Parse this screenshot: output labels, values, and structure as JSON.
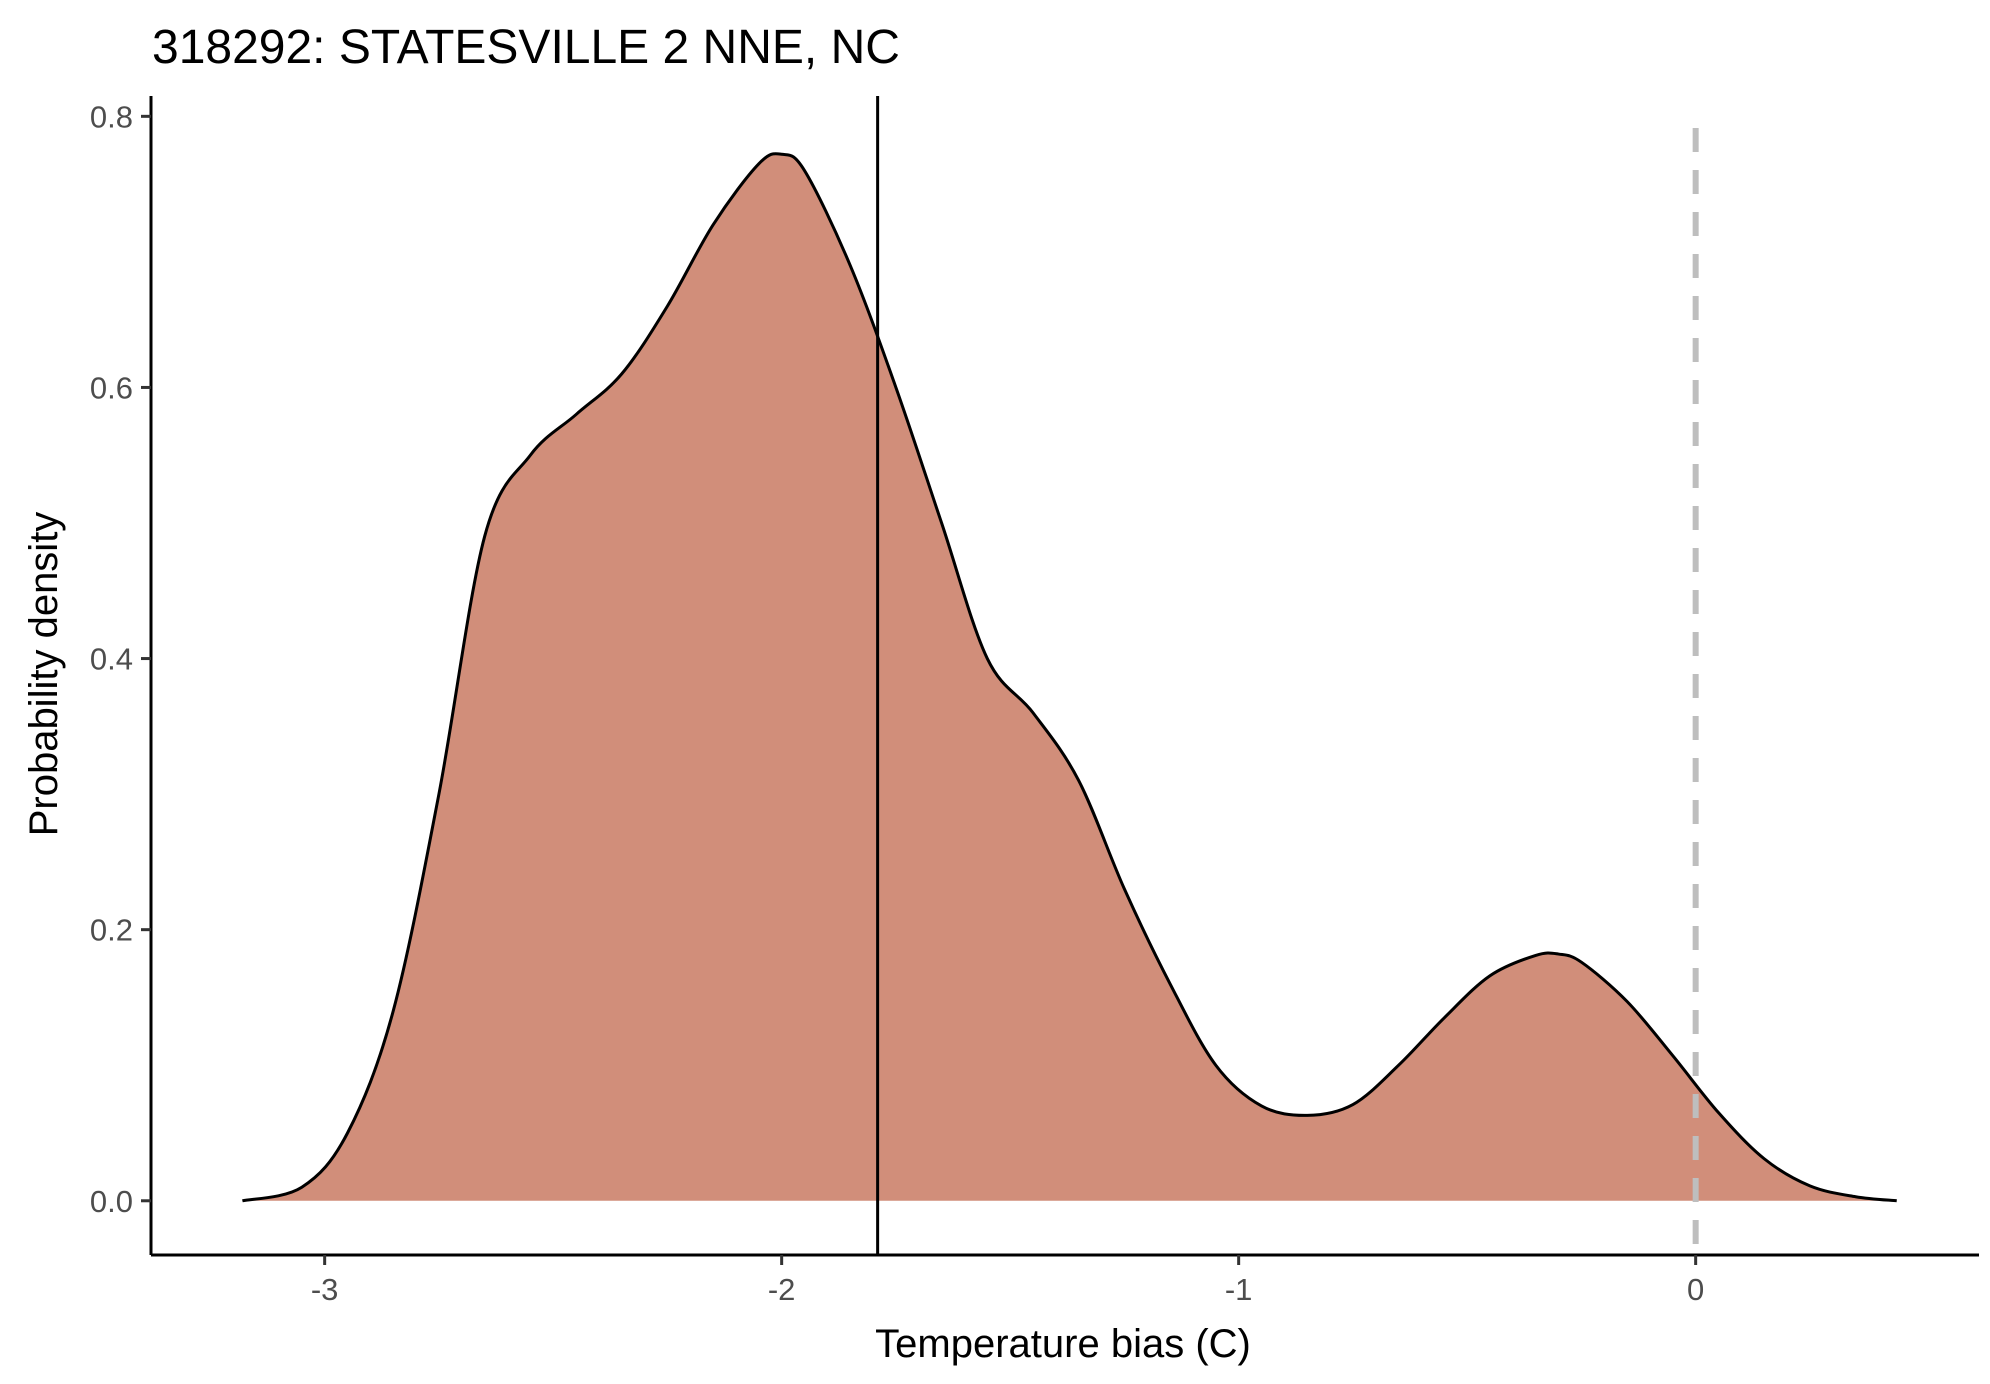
{
  "chart_data": {
    "type": "area",
    "title": "318292: STATESVILLE 2 NNE, NC",
    "xlabel": "Temperature bias (C)",
    "ylabel": "Probability density",
    "xlim": [
      -3.38,
      0.62
    ],
    "ylim": [
      -0.04,
      0.815
    ],
    "xticks": [
      -3,
      -2,
      -1,
      0
    ],
    "xtick_labels": [
      "-3",
      "-2",
      "-1",
      "0"
    ],
    "yticks": [
      0.0,
      0.2,
      0.4,
      0.6,
      0.8
    ],
    "ytick_labels": [
      "0.0",
      "0.2",
      "0.4",
      "0.6",
      "0.8"
    ],
    "grid": false,
    "legend": "none",
    "fill_color": "#d18e7a",
    "line_color": "#000000",
    "series": [
      {
        "x": [
          -3.18,
          -3.05,
          -2.95,
          -2.85,
          -2.75,
          -2.65,
          -2.55,
          -2.45,
          -2.35,
          -2.25,
          -2.15,
          -2.05,
          -2.0,
          -1.95,
          -1.85,
          -1.75,
          -1.65,
          -1.55,
          -1.45,
          -1.35,
          -1.25,
          -1.15,
          -1.05,
          -0.95,
          -0.85,
          -0.75,
          -0.65,
          -0.55,
          -0.45,
          -0.35,
          -0.3,
          -0.25,
          -0.15,
          -0.05,
          0.05,
          0.15,
          0.25,
          0.35,
          0.44
        ],
        "values": [
          0.0,
          0.01,
          0.05,
          0.14,
          0.3,
          0.49,
          0.55,
          0.58,
          0.61,
          0.66,
          0.72,
          0.765,
          0.772,
          0.76,
          0.69,
          0.6,
          0.5,
          0.4,
          0.36,
          0.31,
          0.23,
          0.16,
          0.1,
          0.07,
          0.063,
          0.071,
          0.1,
          0.135,
          0.166,
          0.181,
          0.182,
          0.176,
          0.147,
          0.107,
          0.065,
          0.031,
          0.011,
          0.003,
          0.0
        ]
      }
    ],
    "reference_lines": [
      {
        "axis": "x",
        "value": -1.79,
        "style": "solid",
        "color": "#000000"
      },
      {
        "axis": "x",
        "value": 0.0,
        "style": "dashed",
        "color": "#bebebe"
      }
    ]
  }
}
